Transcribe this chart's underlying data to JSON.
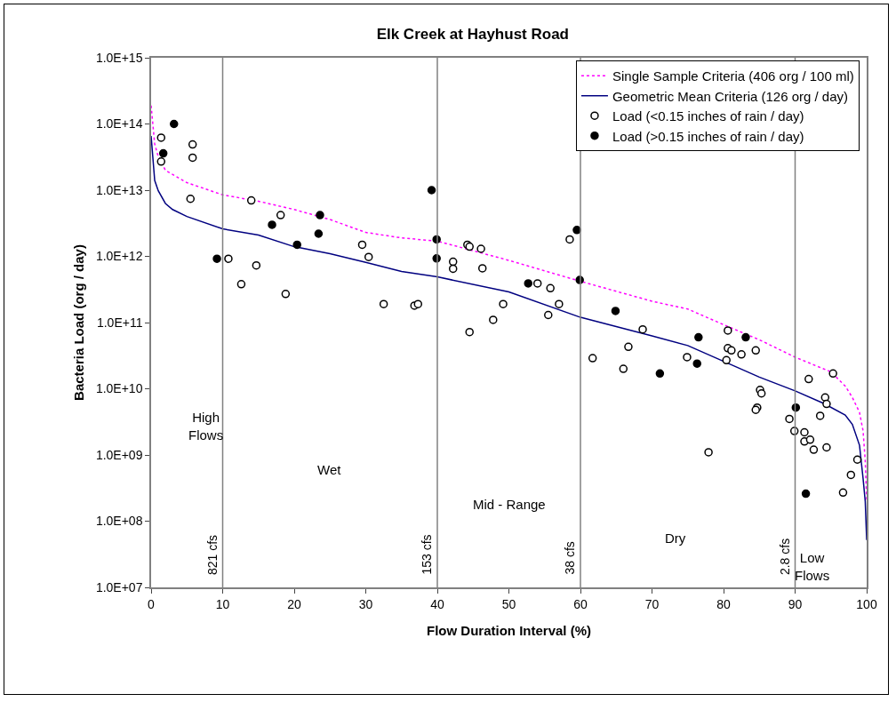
{
  "chart_data": {
    "type": "scatter",
    "title": "Elk Creek at Hayhust Road",
    "xlabel": "Flow Duration Interval (%)",
    "ylabel": "Bacteria Load (org / day)",
    "log": "y",
    "grid": false,
    "legend": "top right",
    "xlim": [
      0,
      100
    ],
    "xticks": [
      0,
      10,
      20,
      30,
      40,
      50,
      60,
      70,
      80,
      90,
      100
    ],
    "ylim": [
      10000000.0,
      1000000000000000.0
    ],
    "yticks": [
      {
        "value": 10000000.0,
        "label": "1.0E+07"
      },
      {
        "value": 100000000.0,
        "label": "1.0E+08"
      },
      {
        "value": 1000000000.0,
        "label": "1.0E+09"
      },
      {
        "value": 10000000000.0,
        "label": "1.0E+10"
      },
      {
        "value": 100000000000.0,
        "label": "1.0E+11"
      },
      {
        "value": 1000000000000.0,
        "label": "1.0E+12"
      },
      {
        "value": 10000000000000.0,
        "label": "1.0E+13"
      },
      {
        "value": 100000000000000.0,
        "label": "1.0E+14"
      },
      {
        "value": 1000000000000000.0,
        "label": "1.0E+15"
      }
    ],
    "series": [
      {
        "name": "Single Sample Criteria (406 org / 100 ml)",
        "type": "line",
        "line_style": "dotted",
        "marker": "none",
        "color": "#ff00ff",
        "x": [
          0,
          0.5,
          1,
          2,
          5,
          10,
          15,
          20,
          25,
          30,
          35,
          40,
          50,
          60,
          70,
          75,
          80,
          85,
          90,
          95,
          97,
          98,
          99,
          99.5,
          99.8,
          100
        ],
        "values": [
          190000000000000.0,
          50000000000000.0,
          32000000000000.0,
          20000000000000.0,
          13000000000000.0,
          8500000000000.0,
          6800000000000.0,
          5100000000000.0,
          3600000000000.0,
          2300000000000.0,
          1900000000000.0,
          1700000000000.0,
          870000000000.0,
          420000000000.0,
          210000000000.0,
          160000000000.0,
          93000000000.0,
          55000000000.0,
          30000000000.0,
          18000000000.0,
          11000000000.0,
          7400000000.0,
          4400000000.0,
          2300000000.0,
          810000000.0,
          210000000.0
        ]
      },
      {
        "name": "Geometric Mean Criteria (126 org / day)",
        "type": "line",
        "line_style": "solid",
        "marker": "none",
        "color": "#000080",
        "x": [
          0,
          0.5,
          1,
          2,
          3,
          5,
          10,
          15,
          20,
          25,
          30,
          35,
          40,
          50,
          60,
          70,
          75,
          80,
          85,
          90,
          94,
          97,
          98,
          99,
          99.5,
          99.8,
          100
        ],
        "values": [
          66000000000000.0,
          14000000000000.0,
          9800000000000.0,
          6300000000000.0,
          5100000000000.0,
          4000000000000.0,
          2600000000000.0,
          2100000000000.0,
          1400000000000.0,
          1100000000000.0,
          810000000000.0,
          590000000000.0,
          490000000000.0,
          290000000000.0,
          120000000000.0,
          63000000000.0,
          45000000000.0,
          26000000000.0,
          15000000000.0,
          9300000000.0,
          6000000000.0,
          4000000000.0,
          2900000000.0,
          1400000000.0,
          440000000.0,
          200000000.0,
          52000000.0
        ]
      },
      {
        "name": "Load (<0.15 inches of rain / day)",
        "marker": "circle",
        "color": "#ffffff",
        "x": [
          1.4,
          1.4,
          5.8,
          5.8,
          5.5,
          14.0,
          18.1,
          29.5,
          30.4,
          10.8,
          14.7,
          12.6,
          18.8,
          32.5,
          36.8,
          37.3,
          44.2,
          44.5,
          46.1,
          42.2,
          42.2,
          46.3,
          44.5,
          47.8,
          49.2,
          54.0,
          55.8,
          57.0,
          55.5,
          58.5,
          68.7,
          66.7,
          61.7,
          66.0,
          74.9,
          80.6,
          80.6,
          81.1,
          82.5,
          80.4,
          84.5,
          85.1,
          85.3,
          84.7,
          84.5,
          77.9,
          89.2,
          89.9,
          91.3,
          91.3,
          92.1,
          92.6,
          91.9,
          95.3,
          94.2,
          94.4,
          93.5,
          94.4,
          96.7,
          97.8,
          98.7
        ],
        "values": [
          62000000000000.0,
          27000000000000.0,
          49000000000000.0,
          31000000000000.0,
          7400000000000.0,
          7000000000000.0,
          4200000000000.0,
          1500000000000.0,
          980000000000.0,
          920000000000.0,
          730000000000.0,
          380000000000.0,
          270000000000.0,
          190000000000.0,
          180000000000.0,
          190000000000.0,
          1500000000000.0,
          1400000000000.0,
          1300000000000.0,
          830000000000.0,
          650000000000.0,
          660000000000.0,
          72000000000.0,
          110000000000.0,
          190000000000.0,
          390000000000.0,
          330000000000.0,
          190000000000.0,
          130000000000.0,
          1800000000000.0,
          79000000000.0,
          43000000000.0,
          29000000000.0,
          20000000000.0,
          30000000000.0,
          76000000000.0,
          41000000000.0,
          38000000000.0,
          33000000000.0,
          27000000000.0,
          38000000000.0,
          9600000000.0,
          8500000000.0,
          5200000000.0,
          4800000000.0,
          1100000000.0,
          3500000000.0,
          2300000000.0,
          2200000000.0,
          1600000000.0,
          1700000000.0,
          1200000000.0,
          14000000000.0,
          17000000000.0,
          7400000000.0,
          5900000000.0,
          3900000000.0,
          1300000000.0,
          270000000.0,
          500000000.0,
          850000000.0
        ]
      },
      {
        "name": "Load (>0.15 inches of rain / day)",
        "marker": "circle",
        "color": "#000000",
        "x": [
          3.2,
          1.7,
          23.6,
          16.9,
          23.4,
          20.4,
          9.2,
          39.2,
          39.9,
          39.9,
          52.7,
          59.5,
          59.9,
          64.9,
          71.1,
          76.5,
          76.3,
          83.1,
          90.1,
          91.5
        ],
        "values": [
          100000000000000.0,
          36000000000000.0,
          4200000000000.0,
          3000000000000.0,
          2200000000000.0,
          1500000000000.0,
          920000000000.0,
          10000000000000.0,
          1800000000000.0,
          930000000000.0,
          390000000000.0,
          2500000000000.0,
          440000000000.0,
          150000000000.0,
          17000000000.0,
          60000000000.0,
          24000000000.0,
          60000000000.0,
          5200000000.0,
          260000000.0
        ]
      }
    ],
    "ref_lines": [
      {
        "axis": "x",
        "value": 10,
        "label": "821 cfs",
        "color": "#808080"
      },
      {
        "axis": "x",
        "value": 40,
        "label": "153 cfs",
        "color": "#808080"
      },
      {
        "axis": "x",
        "value": 60,
        "label": "38 cfs",
        "color": "#808080"
      },
      {
        "axis": "x",
        "value": 90,
        "label": "2.8 cfs",
        "color": "#808080"
      }
    ],
    "annotations": [
      "High\nFlows",
      "Wet",
      "Mid - Range",
      "Dry",
      "Low\nFlows"
    ]
  }
}
